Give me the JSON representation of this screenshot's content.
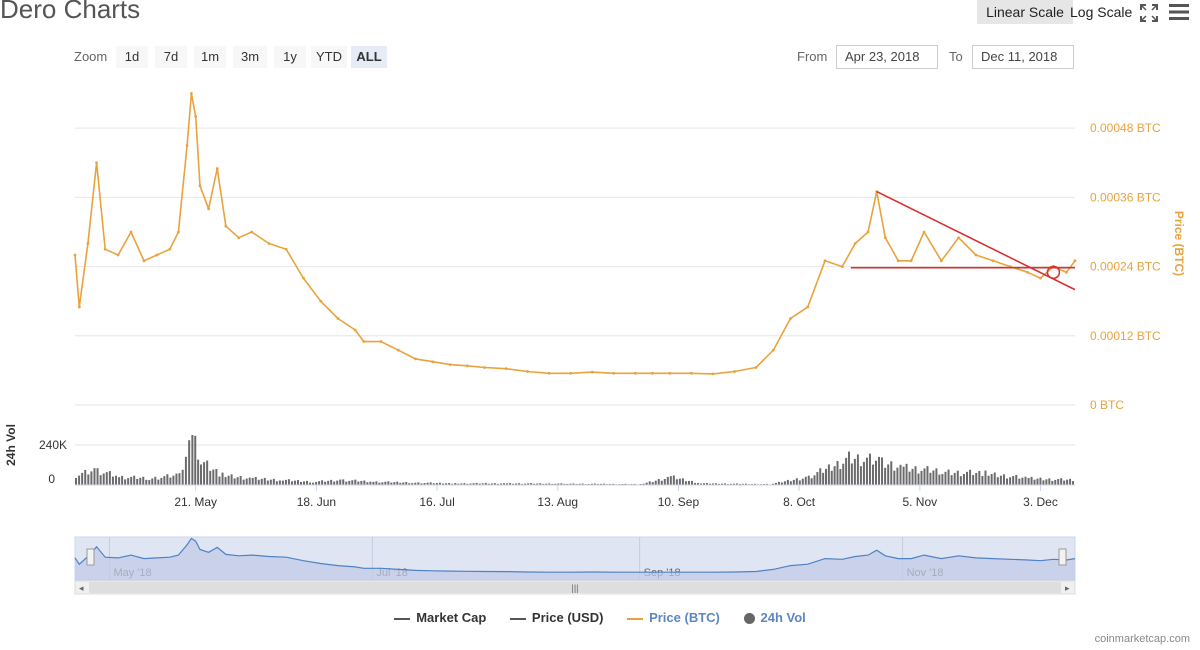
{
  "header": {
    "title": "Dero Charts",
    "scale_linear": "Linear Scale",
    "scale_log": "Log Scale"
  },
  "zoom": {
    "label": "Zoom",
    "buttons": [
      "1d",
      "7d",
      "1m",
      "3m",
      "1y",
      "YTD",
      "ALL"
    ],
    "active": "ALL"
  },
  "range": {
    "from_label": "From",
    "from_value": "Apr 23, 2018",
    "to_label": "To",
    "to_value": "Dec 11, 2018"
  },
  "legend": {
    "items": [
      {
        "label": "Market Cap",
        "color": "#555555",
        "style": "line"
      },
      {
        "label": "Price (USD)",
        "color": "#555555",
        "style": "line"
      },
      {
        "label": "Price (BTC)",
        "color": "#e8a33d",
        "style": "line"
      },
      {
        "label": "24h Vol",
        "color": "#666666",
        "style": "dot"
      }
    ]
  },
  "credit": "coinmarketcap.com",
  "chart_data": {
    "type": "line",
    "x_range": [
      "2018-04-23",
      "2018-12-11"
    ],
    "price_btc": {
      "name": "Price (BTC)",
      "color": "#e8a33d",
      "axis_label": "Price (BTC)",
      "y_ticks": [
        "0 BTC",
        "0.00012 BTC",
        "0.00024 BTC",
        "0.00036 BTC",
        "0.00048 BTC"
      ],
      "ylim": [
        0,
        0.00056
      ],
      "x": [
        "2018-04-23",
        "2018-04-24",
        "2018-04-26",
        "2018-04-28",
        "2018-04-30",
        "2018-05-03",
        "2018-05-06",
        "2018-05-09",
        "2018-05-12",
        "2018-05-15",
        "2018-05-17",
        "2018-05-19",
        "2018-05-20",
        "2018-05-21",
        "2018-05-22",
        "2018-05-24",
        "2018-05-26",
        "2018-05-28",
        "2018-05-31",
        "2018-06-03",
        "2018-06-07",
        "2018-06-11",
        "2018-06-15",
        "2018-06-19",
        "2018-06-23",
        "2018-06-27",
        "2018-06-29",
        "2018-07-03",
        "2018-07-07",
        "2018-07-11",
        "2018-07-15",
        "2018-07-19",
        "2018-07-23",
        "2018-07-27",
        "2018-08-01",
        "2018-08-06",
        "2018-08-11",
        "2018-08-16",
        "2018-08-21",
        "2018-08-26",
        "2018-08-31",
        "2018-09-04",
        "2018-09-08",
        "2018-09-13",
        "2018-09-18",
        "2018-09-23",
        "2018-09-28",
        "2018-10-02",
        "2018-10-06",
        "2018-10-10",
        "2018-10-14",
        "2018-10-18",
        "2018-10-21",
        "2018-10-24",
        "2018-10-26",
        "2018-10-28",
        "2018-10-31",
        "2018-11-03",
        "2018-11-06",
        "2018-11-10",
        "2018-11-14",
        "2018-11-18",
        "2018-11-22",
        "2018-11-26",
        "2018-11-30",
        "2018-12-03",
        "2018-12-06",
        "2018-12-09",
        "2018-12-11"
      ],
      "y": [
        0.00026,
        0.00017,
        0.00028,
        0.00042,
        0.00027,
        0.00026,
        0.0003,
        0.00025,
        0.00026,
        0.00027,
        0.0003,
        0.00045,
        0.00054,
        0.0005,
        0.00038,
        0.00034,
        0.00041,
        0.00031,
        0.00029,
        0.0003,
        0.00028,
        0.00027,
        0.00022,
        0.00018,
        0.00015,
        0.00013,
        0.00011,
        0.00011,
        9.5e-05,
        8e-05,
        7.5e-05,
        7e-05,
        6.8e-05,
        6.5e-05,
        6.3e-05,
        5.8e-05,
        5.5e-05,
        5.5e-05,
        5.7e-05,
        5.5e-05,
        5.5e-05,
        5.5e-05,
        5.5e-05,
        5.5e-05,
        5.4e-05,
        5.8e-05,
        6.5e-05,
        9.5e-05,
        0.00015,
        0.00017,
        0.00025,
        0.00024,
        0.00028,
        0.0003,
        0.00037,
        0.00029,
        0.00025,
        0.00025,
        0.0003,
        0.00025,
        0.00029,
        0.00026,
        0.00025,
        0.00024,
        0.00023,
        0.00022,
        0.00024,
        0.00023,
        0.00025
      ]
    },
    "volume": {
      "name": "24h Vol",
      "axis_label": "24h Vol",
      "y_ticks": [
        "0",
        "240K"
      ],
      "ylim": [
        0,
        480000
      ],
      "x": [
        "2018-04-23",
        "2018-04-28",
        "2018-05-03",
        "2018-05-10",
        "2018-05-17",
        "2018-05-20",
        "2018-05-22",
        "2018-05-27",
        "2018-06-03",
        "2018-06-10",
        "2018-06-17",
        "2018-06-24",
        "2018-07-01",
        "2018-07-10",
        "2018-07-20",
        "2018-08-01",
        "2018-08-15",
        "2018-09-01",
        "2018-09-08",
        "2018-09-15",
        "2018-10-01",
        "2018-10-10",
        "2018-10-16",
        "2018-10-20",
        "2018-10-27",
        "2018-11-01",
        "2018-11-10",
        "2018-11-20",
        "2018-11-30",
        "2018-12-11"
      ],
      "y": [
        60000,
        90000,
        50000,
        40000,
        60000,
        300000,
        150000,
        60000,
        40000,
        30000,
        20000,
        30000,
        20000,
        15000,
        10000,
        10000,
        8000,
        5000,
        50000,
        10000,
        5000,
        50000,
        120000,
        170000,
        140000,
        110000,
        80000,
        70000,
        40000,
        30000
      ]
    },
    "x_ticks": [
      "21. May",
      "18. Jun",
      "16. Jul",
      "13. Aug",
      "10. Sep",
      "8. Oct",
      "5. Nov",
      "3. Dec"
    ],
    "x_tick_dates": [
      "2018-05-21",
      "2018-06-18",
      "2018-07-16",
      "2018-08-13",
      "2018-09-10",
      "2018-10-08",
      "2018-11-05",
      "2018-12-03"
    ],
    "navigator": {
      "labels": [
        "May '18",
        "Jul '18",
        "Sep '18",
        "Nov '18"
      ],
      "label_dates": [
        "2018-05-01",
        "2018-07-01",
        "2018-09-01",
        "2018-11-01"
      ]
    },
    "annotations": {
      "color": "#d93030",
      "descending_trendline": [
        [
          "2018-10-26",
          0.00037
        ],
        [
          "2018-12-11",
          0.0002
        ]
      ],
      "horizontal_support": [
        [
          "2018-10-20",
          0.000238
        ],
        [
          "2018-12-11",
          0.000238
        ]
      ],
      "circle_at": [
        "2018-12-06",
        0.00023
      ]
    },
    "grid": true
  }
}
